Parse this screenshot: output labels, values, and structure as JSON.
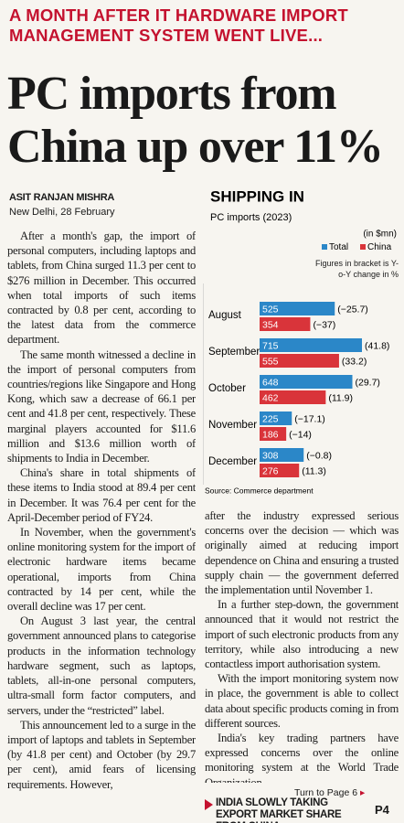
{
  "kicker": "A MONTH AFTER IT HARDWARE IMPORT MANAGEMENT SYSTEM WENT LIVE...",
  "headline": "PC imports from China up over 11%",
  "byline": {
    "author": "ASIT RANJAN MISHRA",
    "dateline": "New Delhi, 28 February"
  },
  "body": {
    "left": [
      "After a month's gap, the import of personal computers, including laptops and tablets, from China surged 11.3 per cent to $276 million in December. This occurred when total imports of such items contracted by 0.8 per cent, according to the latest data from the commerce department.",
      "The same month witnessed a decline in the import of personal computers from countries/regions like Singapore and Hong Kong, which saw a decrease of 66.1 per cent and 41.8 per cent, respectively. These marginal players accounted for $11.6 million and $13.6 million worth of shipments to India in December.",
      "China's share in total shipments of these items to India stood at 89.4 per cent in December. It was 76.4 per cent for the April-December period of FY24.",
      "In November, when the government's online monitoring system for the import of electronic hardware items became operational, imports from China contracted by 14 per cent, while the overall decline was 17 per cent.",
      "On August 3 last year, the central government announced plans to categorise products in the information technology hardware segment, such as laptops, tablets, all-in-one personal computers, ultra-small form factor computers, and servers, under the “restricted” label.",
      "This announcement led to a surge in the import of laptops and tablets in September (by 41.8 per cent) and October (by 29.7 per cent), amid fears of licensing requirements. However,"
    ],
    "continued": "after the industry expressed serious concerns over the decision — which was originally aimed at reducing import dependence on China and ensuring a trusted supply chain — the government deferred the implementation until November 1.",
    "right": [
      "In a further step-down, the government announced that it would not restrict the import of such electronic products from any territory, while also introducing a new contactless import authorisation system.",
      "With the import monitoring system now in place, the government is able to collect data about specific products coming in from different sources.",
      "India's key trading partners have expressed concerns over the online monitoring system at the World Trade Organization."
    ],
    "jump": "Turn to Page 6"
  },
  "chart_data": {
    "type": "bar",
    "orientation": "horizontal",
    "title": "SHIPPING IN",
    "subtitle": "PC imports (2023)",
    "unit": "(in $mn)",
    "note": "Figures in bracket is Y-o-Y change in %",
    "source": "Source: Commerce department",
    "categories": [
      "August",
      "September",
      "October",
      "November",
      "December"
    ],
    "series": [
      {
        "name": "Total",
        "color": "#2b87c8",
        "values": [
          525,
          715,
          648,
          225,
          308
        ],
        "changes": [
          -25.7,
          41.8,
          29.7,
          -17.1,
          -0.8
        ],
        "change_labels": [
          "(−25.7)",
          "(41.8)",
          "(29.7)",
          "(−17.1)",
          "(−0.8)"
        ]
      },
      {
        "name": "China",
        "color": "#d9343a",
        "values": [
          354,
          555,
          462,
          186,
          276
        ],
        "changes": [
          -37,
          33.2,
          11.9,
          -14,
          11.3
        ],
        "change_labels": [
          "(−37)",
          "(33.2)",
          "(11.9)",
          "(−14)",
          "(11.3)"
        ]
      }
    ]
  },
  "footer": {
    "teaser": "INDIA SLOWLY TAKING EXPORT MARKET SHARE FROM CHINA",
    "page": "P4"
  }
}
